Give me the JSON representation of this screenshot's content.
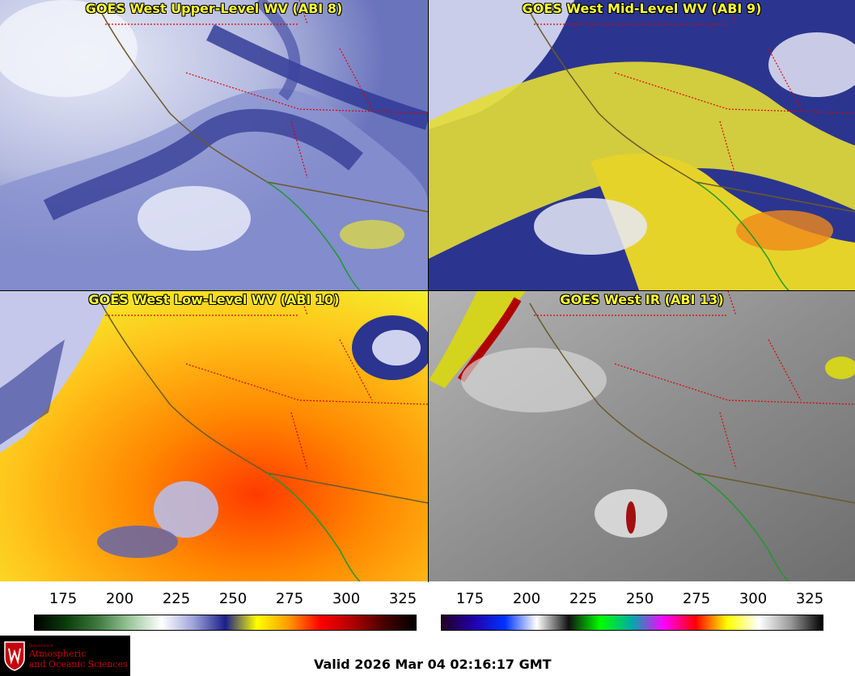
{
  "panels": [
    {
      "title": "GOES West Upper-Level WV (ABI 8)",
      "theme": "upper"
    },
    {
      "title": "GOES West Mid-Level WV (ABI 9)",
      "theme": "mid"
    },
    {
      "title": "GOES West Low-Level WV (ABI 10)",
      "theme": "low"
    },
    {
      "title": "GOES West IR (ABI 13)",
      "theme": "ir"
    }
  ],
  "colorbars": {
    "wv": {
      "ticks": [
        "175",
        "200",
        "225",
        "250",
        "275",
        "300",
        "325"
      ],
      "gradient": [
        "#000000",
        "#0b3d0b",
        "#3f7a3f",
        "#9cc79c",
        "#ffffff",
        "#9fa3d8",
        "#1b1f8a",
        "#ffff00",
        "#ff9900",
        "#ff0000",
        "#b00000",
        "#4a0000",
        "#000000"
      ]
    },
    "ir": {
      "ticks": [
        "175",
        "200",
        "225",
        "250",
        "275",
        "300",
        "325"
      ],
      "gradient": [
        "#220022",
        "#2200aa",
        "#0033ff",
        "#ffffff",
        "#111111",
        "#00ff00",
        "#00aaaa",
        "#ff00ff",
        "#ff0000",
        "#ffff00",
        "#ffffff",
        "#999999",
        "#000000"
      ]
    }
  },
  "logo": {
    "dept": "Department of",
    "name_line1": "Atmospheric",
    "name_line2": "and Oceanic Sciences"
  },
  "valid_text": "Valid 2026 Mar 04 02:16:17 GMT"
}
